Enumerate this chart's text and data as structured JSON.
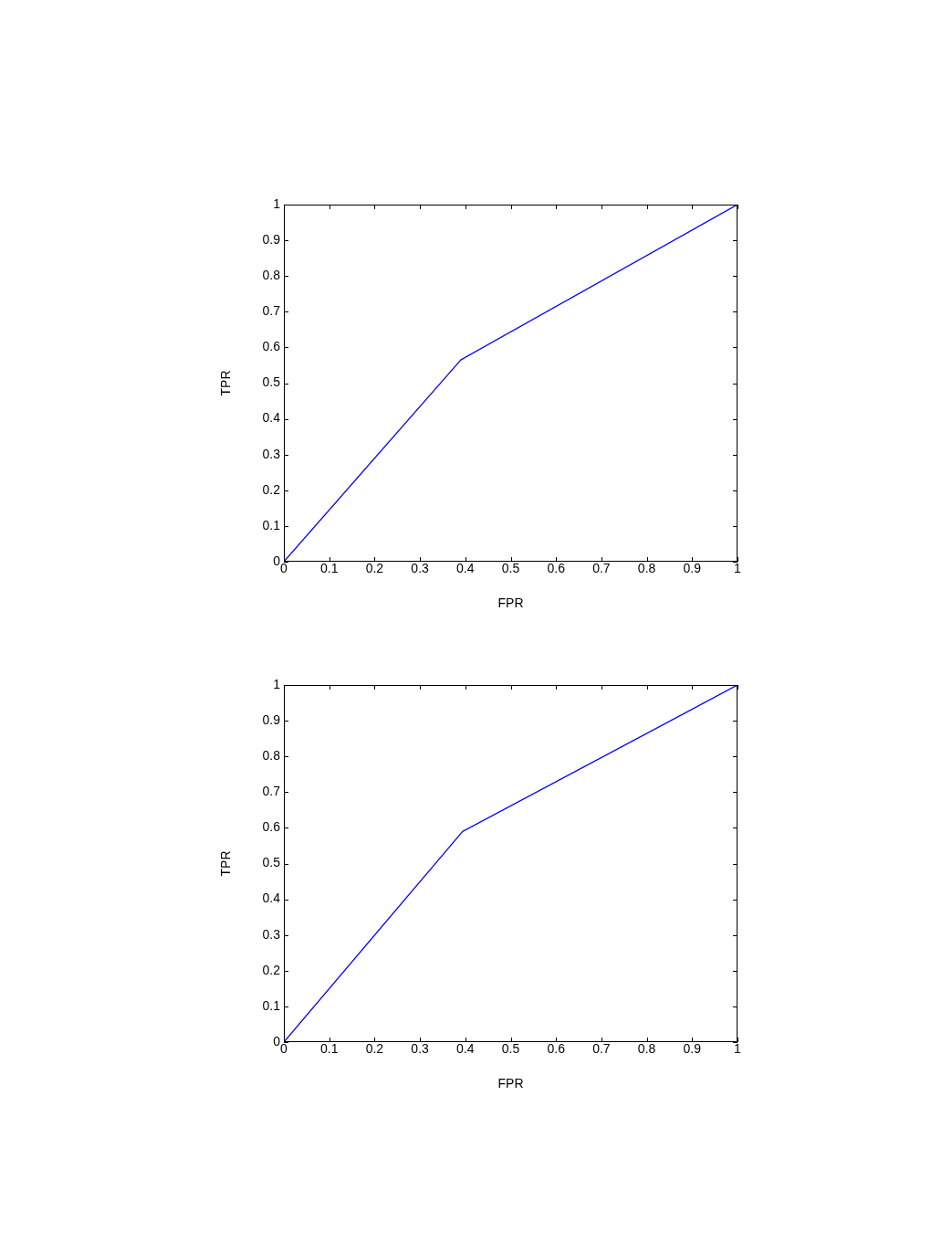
{
  "chart_data": [
    {
      "type": "line",
      "xlabel": "FPR",
      "ylabel": "TPR",
      "grid": false,
      "legend": false,
      "marker": "none",
      "xlim": [
        0,
        1
      ],
      "ylim": [
        0,
        1
      ],
      "xticks": [
        0,
        0.1,
        0.2,
        0.3,
        0.4,
        0.5,
        0.6,
        0.7,
        0.8,
        0.9,
        1
      ],
      "yticks": [
        0,
        0.1,
        0.2,
        0.3,
        0.4,
        0.5,
        0.6,
        0.7,
        0.8,
        0.9,
        1
      ],
      "series": [
        {
          "color": "#0000ff",
          "x": [
            0,
            0.39,
            1
          ],
          "values": [
            0,
            0.565,
            1
          ]
        }
      ]
    },
    {
      "type": "line",
      "xlabel": "FPR",
      "ylabel": "TPR",
      "grid": false,
      "legend": false,
      "marker": "none",
      "xlim": [
        0,
        1
      ],
      "ylim": [
        0,
        1
      ],
      "xticks": [
        0,
        0.1,
        0.2,
        0.3,
        0.4,
        0.5,
        0.6,
        0.7,
        0.8,
        0.9,
        1
      ],
      "yticks": [
        0,
        0.1,
        0.2,
        0.3,
        0.4,
        0.5,
        0.6,
        0.7,
        0.8,
        0.9,
        1
      ],
      "series": [
        {
          "color": "#0000ff",
          "x": [
            0,
            0.394,
            1
          ],
          "values": [
            0,
            0.59,
            1
          ]
        }
      ]
    }
  ]
}
